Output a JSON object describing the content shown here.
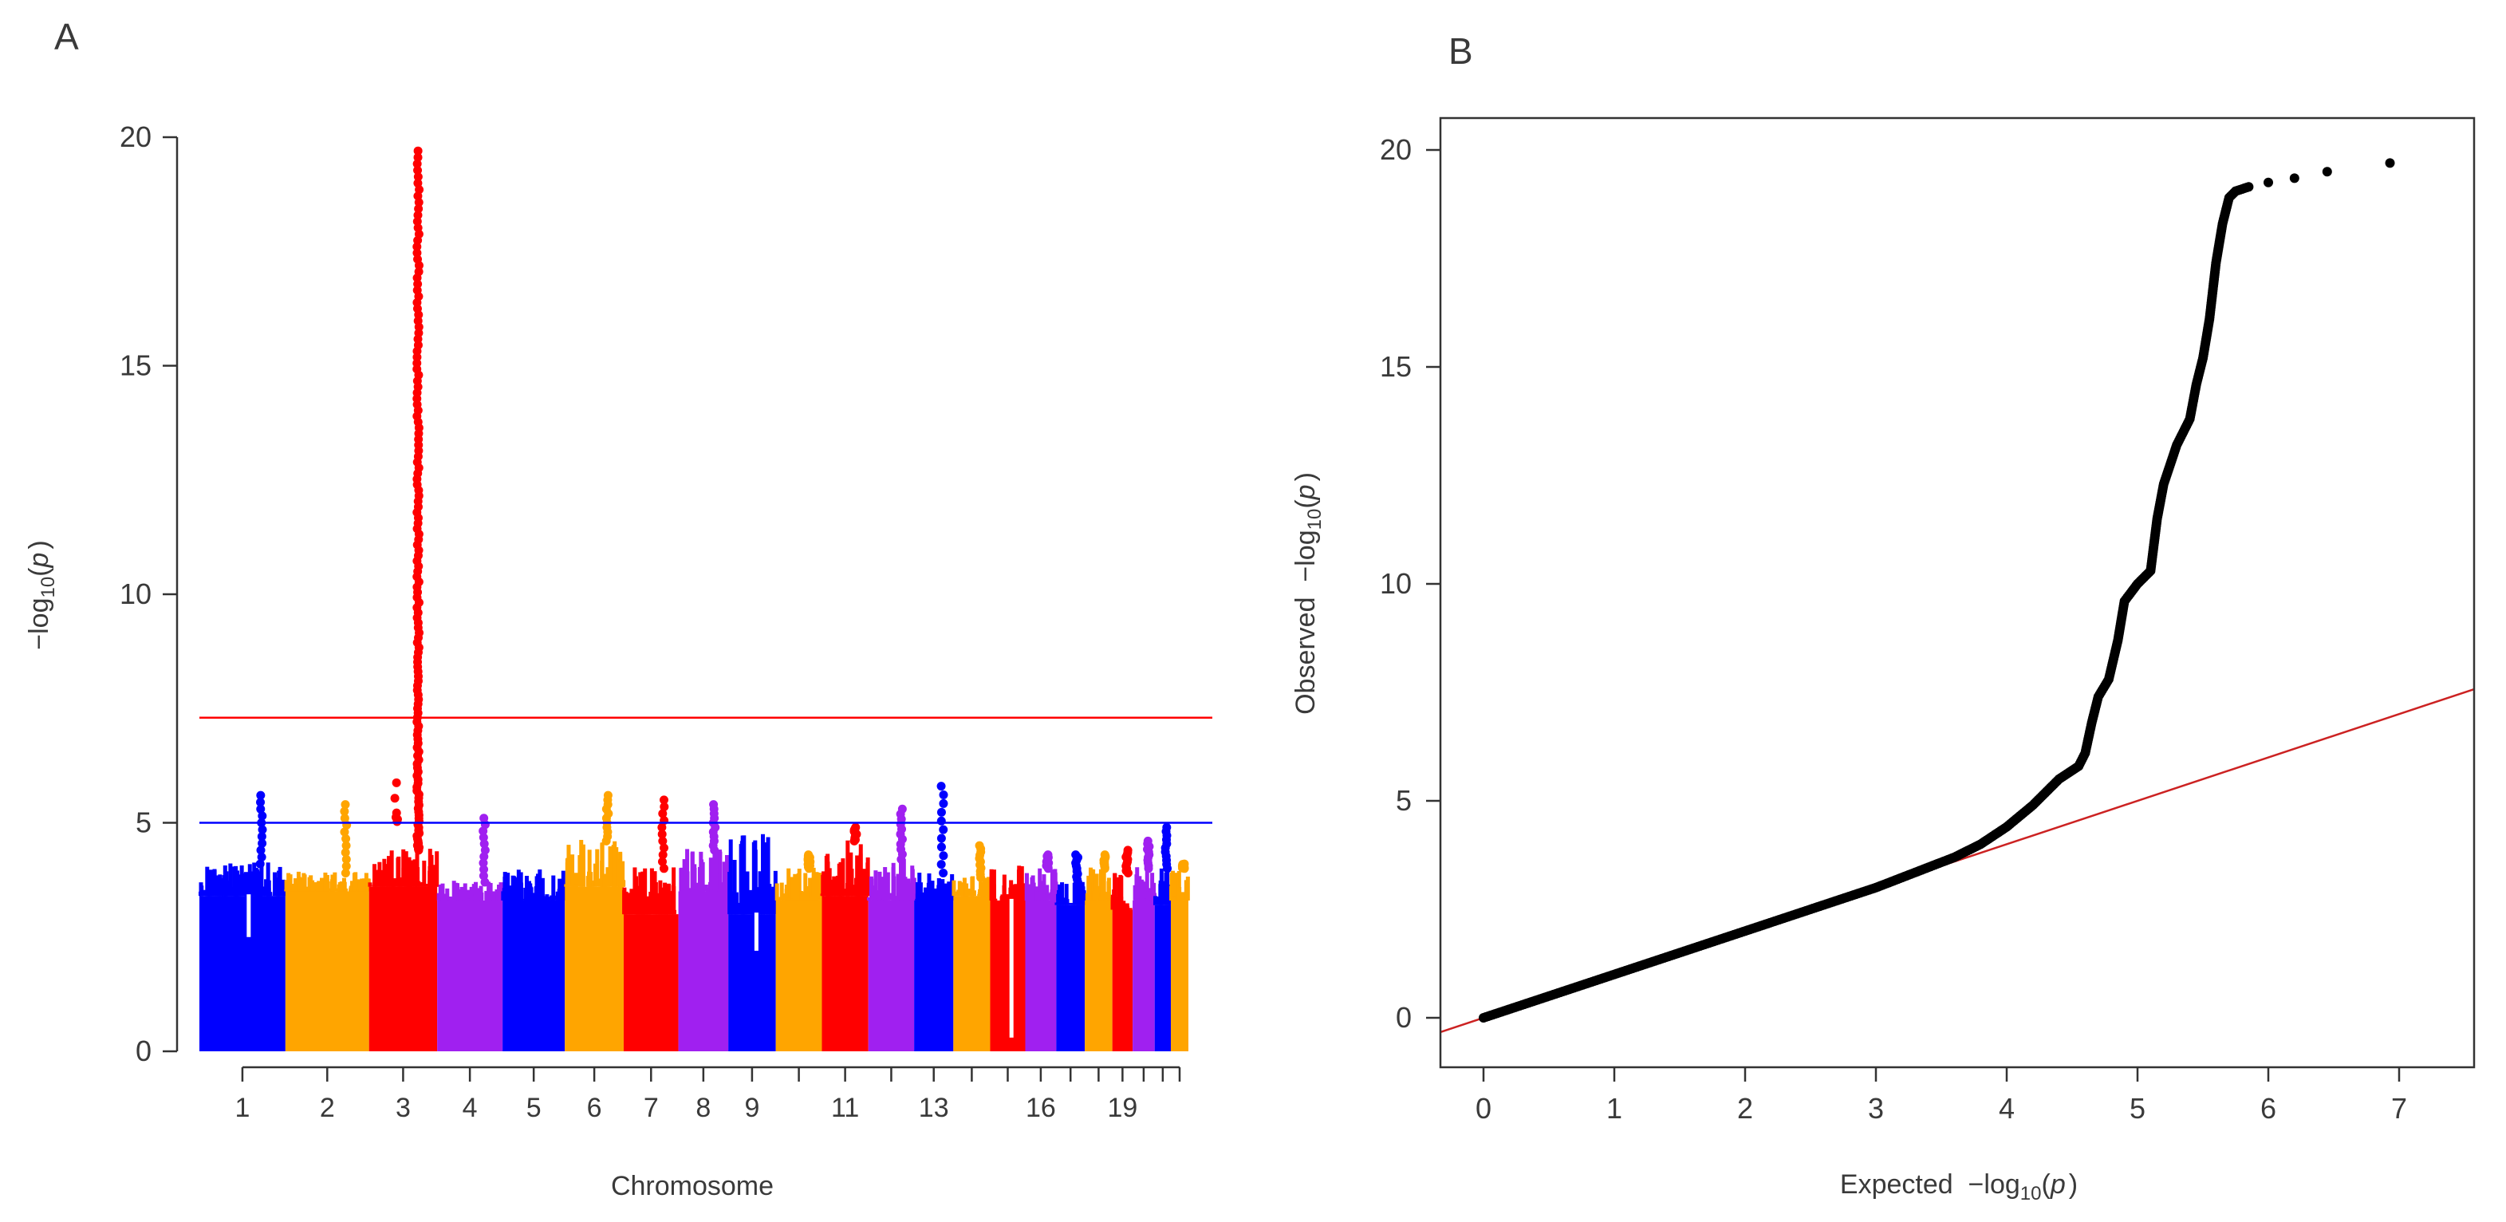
{
  "chart_data": [
    {
      "panel_label": "A",
      "type": "scatter",
      "subtype": "manhattan",
      "xlabel": "Chromosome",
      "ylabel": "−log10(p)",
      "ylabel_parts": {
        "minus_log": "−log",
        "sub": "10",
        "open": "(",
        "p": "p",
        "close": ")"
      },
      "ylim": [
        0,
        20
      ],
      "yticks": [
        "0",
        "5",
        "10",
        "15",
        "20"
      ],
      "x_tick_labels": [
        "1",
        "2",
        "3",
        "4",
        "5",
        "6",
        "7",
        "8",
        "9",
        "11",
        "13",
        "16",
        "19"
      ],
      "chromosomes": [
        {
          "chr": 1,
          "color": "#0000FF",
          "size": 250,
          "base": 3.4,
          "top": 4.1,
          "peak": 5.6,
          "dips": [
            2.5
          ]
        },
        {
          "chr": 2,
          "color": "#FFA500",
          "size": 243,
          "base": 3.5,
          "top": 3.9,
          "peak": 5.4,
          "dips": []
        },
        {
          "chr": 3,
          "color": "#FF0000",
          "size": 198,
          "base": 3.6,
          "top": 4.4,
          "peak": 19.7,
          "dips": []
        },
        {
          "chr": 4,
          "color": "#A020F0",
          "size": 190,
          "base": 3.3,
          "top": 3.7,
          "peak": 5.1,
          "dips": []
        },
        {
          "chr": 5,
          "color": "#0000FF",
          "size": 181,
          "base": 3.3,
          "top": 4.0,
          "peak": 4.0,
          "dips": []
        },
        {
          "chr": 6,
          "color": "#FFA500",
          "size": 171,
          "base": 3.6,
          "top": 4.6,
          "peak": 5.6,
          "dips": []
        },
        {
          "chr": 7,
          "color": "#FF0000",
          "size": 159,
          "base": 3.0,
          "top": 4.0,
          "peak": 5.5,
          "dips": []
        },
        {
          "chr": 8,
          "color": "#A020F0",
          "size": 145,
          "base": 3.5,
          "top": 4.4,
          "peak": 5.4,
          "dips": []
        },
        {
          "chr": 9,
          "color": "#0000FF",
          "size": 138,
          "base": 3.0,
          "top": 4.8,
          "peak": 4.8,
          "dips": [
            2.2
          ]
        },
        {
          "chr": 10,
          "color": "#FFA500",
          "size": 134,
          "base": 3.3,
          "top": 4.0,
          "peak": 4.3,
          "dips": []
        },
        {
          "chr": 11,
          "color": "#FF0000",
          "size": 135,
          "base": 3.4,
          "top": 4.6,
          "peak": 4.9,
          "dips": []
        },
        {
          "chr": 12,
          "color": "#A020F0",
          "size": 133,
          "base": 3.3,
          "top": 4.2,
          "peak": 5.3,
          "dips": []
        },
        {
          "chr": 13,
          "color": "#0000FF",
          "size": 114,
          "base": 3.3,
          "top": 3.9,
          "peak": 5.8,
          "dips": []
        },
        {
          "chr": 14,
          "color": "#FFA500",
          "size": 107,
          "base": 3.4,
          "top": 3.8,
          "peak": 4.5,
          "dips": []
        },
        {
          "chr": 15,
          "color": "#FF0000",
          "size": 102,
          "base": 3.3,
          "top": 4.2,
          "peak": 4.2,
          "dips": [
            0.3
          ]
        },
        {
          "chr": 16,
          "color": "#A020F0",
          "size": 90,
          "base": 3.3,
          "top": 4.0,
          "peak": 4.3,
          "dips": []
        },
        {
          "chr": 17,
          "color": "#0000FF",
          "size": 83,
          "base": 3.2,
          "top": 3.7,
          "peak": 4.3,
          "dips": []
        },
        {
          "chr": 18,
          "color": "#FFA500",
          "size": 80,
          "base": 3.3,
          "top": 4.0,
          "peak": 4.3,
          "dips": []
        },
        {
          "chr": 19,
          "color": "#FF0000",
          "size": 59,
          "base": 3.1,
          "top": 3.9,
          "peak": 4.4,
          "dips": []
        },
        {
          "chr": 20,
          "color": "#A020F0",
          "size": 64,
          "base": 3.3,
          "top": 4.0,
          "peak": 4.6,
          "dips": []
        },
        {
          "chr": 21,
          "color": "#0000FF",
          "size": 47,
          "base": 3.2,
          "top": 4.0,
          "peak": 4.9,
          "dips": []
        },
        {
          "chr": 22,
          "color": "#FFA500",
          "size": 51,
          "base": 3.3,
          "top": 4.0,
          "peak": 4.1,
          "dips": []
        }
      ],
      "hlines": [
        {
          "name": "genome-wide-threshold",
          "y": 7.3,
          "color": "#FF0000"
        },
        {
          "name": "suggestive-threshold",
          "y": 5.0,
          "color": "#0000FF"
        }
      ],
      "grid": false
    },
    {
      "panel_label": "B",
      "type": "scatter",
      "subtype": "qq",
      "xlabel": "Expected −log10(p)",
      "xlabel_parts": {
        "prefix": "Expected  −log",
        "sub": "10",
        "open": "(",
        "p": "p",
        "close": ")"
      },
      "ylabel": "Observed −log10(p)",
      "ylabel_parts": {
        "prefix": "Observed  −log",
        "sub": "10",
        "open": "(",
        "p": "p",
        "close": ")"
      },
      "xlim": [
        0,
        7
      ],
      "ylim": [
        0,
        20
      ],
      "xticks": [
        "0",
        "1",
        "2",
        "3",
        "4",
        "5",
        "6",
        "7"
      ],
      "yticks": [
        "0",
        "5",
        "10",
        "15",
        "20"
      ],
      "reference_line": {
        "slope": 1,
        "intercept": 0,
        "color": "#CC0000"
      },
      "points_color": "#000000",
      "curve_points": [
        [
          0.0,
          0.0
        ],
        [
          0.5,
          0.5
        ],
        [
          1.0,
          1.0
        ],
        [
          1.5,
          1.5
        ],
        [
          2.0,
          2.0
        ],
        [
          2.5,
          2.5
        ],
        [
          3.0,
          3.0
        ],
        [
          3.3,
          3.35
        ],
        [
          3.6,
          3.7
        ],
        [
          3.8,
          4.0
        ],
        [
          4.0,
          4.4
        ],
        [
          4.2,
          4.9
        ],
        [
          4.4,
          5.5
        ],
        [
          4.55,
          5.8
        ],
        [
          4.6,
          6.1
        ],
        [
          4.65,
          6.8
        ],
        [
          4.7,
          7.4
        ],
        [
          4.78,
          7.8
        ],
        [
          4.85,
          8.7
        ],
        [
          4.9,
          9.6
        ],
        [
          5.0,
          10.0
        ],
        [
          5.1,
          10.3
        ],
        [
          5.15,
          11.5
        ],
        [
          5.2,
          12.3
        ],
        [
          5.3,
          13.2
        ],
        [
          5.4,
          13.8
        ],
        [
          5.45,
          14.6
        ],
        [
          5.5,
          15.2
        ],
        [
          5.55,
          16.1
        ],
        [
          5.6,
          17.4
        ],
        [
          5.65,
          18.3
        ],
        [
          5.7,
          18.9
        ],
        [
          5.75,
          19.05
        ],
        [
          5.85,
          19.15
        ],
        [
          6.0,
          19.25
        ],
        [
          6.2,
          19.35
        ],
        [
          6.45,
          19.5
        ],
        [
          6.93,
          19.7
        ]
      ],
      "grid": false
    }
  ]
}
